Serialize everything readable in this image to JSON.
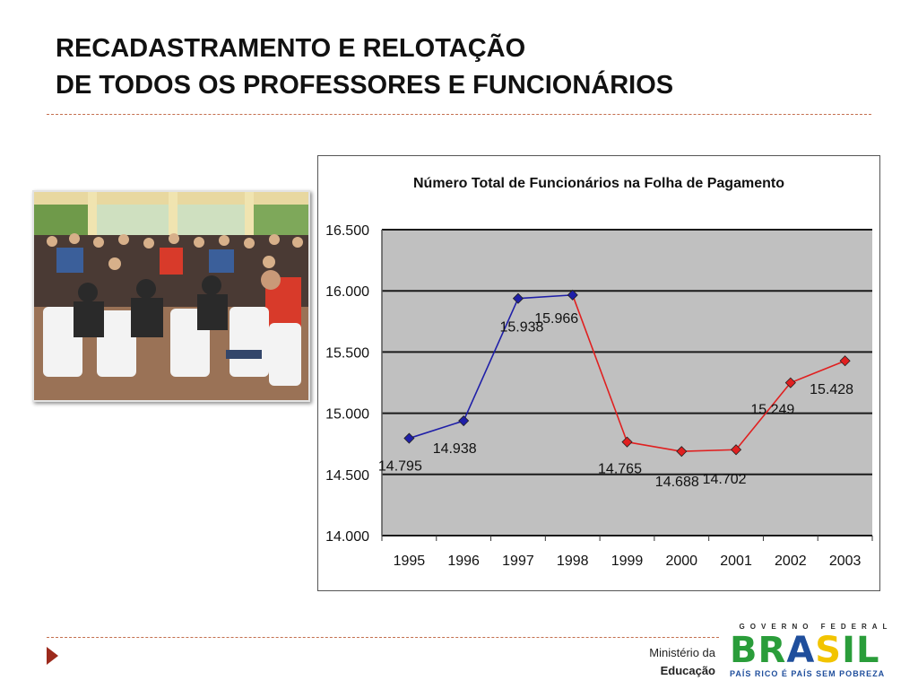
{
  "slide": {
    "title_line1": "RECADASTRAMENTO E RELOTAÇÃO",
    "title_line2": "DE TODOS OS PROFESSORES E FUNCIONÁRIOS"
  },
  "footer": {
    "ministry_line1": "Ministério da",
    "ministry_line2": "Educação",
    "logo_top": "GOVERNO FEDERAL",
    "logo_word": "BRASIL",
    "logo_tagline": "PAÍS RICO É PAÍS SEM POBREZA"
  },
  "photo": {
    "icon": "meeting-photo"
  },
  "colors": {
    "accent": "#9c2a1c",
    "rule": "#c4704f",
    "plot_bg": "#c0c0c0",
    "series_blue": "#1f1fa8",
    "series_red": "#e02020"
  },
  "chart_data": {
    "type": "line",
    "title": "Número Total de Funcionários na Folha de Pagamento",
    "xlabel": "",
    "ylabel": "",
    "categories": [
      "1995",
      "1996",
      "1997",
      "1998",
      "1999",
      "2000",
      "2001",
      "2002",
      "2003"
    ],
    "values": [
      14795,
      14938,
      15938,
      15966,
      14765,
      14688,
      14702,
      15249,
      15428
    ],
    "value_labels": [
      "14.795",
      "14.938",
      "15.938",
      "15.966",
      "14.765",
      "14.688",
      "14.702",
      "15.249",
      "15.428"
    ],
    "y_ticks": [
      14000,
      14500,
      15000,
      15500,
      16000,
      16500
    ],
    "y_tick_labels": [
      "14.000",
      "14.500",
      "15.000",
      "15.500",
      "16.000",
      "16.500"
    ],
    "ylim": [
      14000,
      16500
    ],
    "grid": true,
    "legend": "none",
    "segment_colors": [
      "blue",
      "blue",
      "blue",
      "red",
      "red",
      "red",
      "red",
      "red"
    ],
    "marker_colors": [
      "blue",
      "blue",
      "blue",
      "blue",
      "red",
      "red",
      "red",
      "red",
      "red"
    ]
  }
}
